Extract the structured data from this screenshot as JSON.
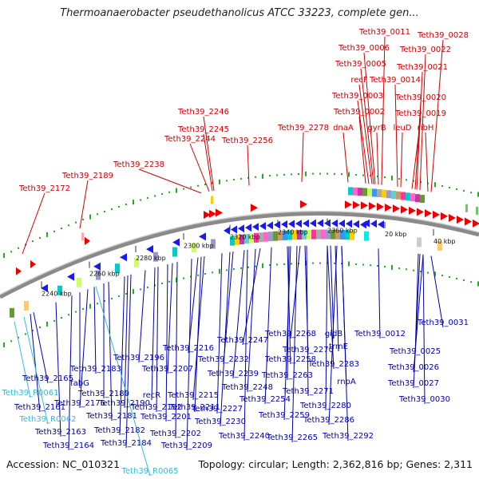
{
  "title": "Thermoanaerobacter pseudethanolicus ATCC 33223, complete gen...",
  "footer": {
    "accession": "Accession: NC_010321",
    "summary": "Topology: circular; Length: 2,362,816 bp; Genes: 2,311"
  },
  "colors": {
    "top_label": "#cc0000",
    "bottom_label": "#0000aa",
    "rna_label": "#33bbdd",
    "forward_gene": "#ee0000",
    "reverse_gene": "#1a1aee",
    "backbone": "#888888",
    "dots": "#22aa22"
  },
  "tick_labels": [
    "2240 kbp",
    "2260 kbp",
    "2280 kbp",
    "2300 kbp",
    "2320 kbp",
    "2340 kbp",
    "2360 kbp",
    "20 kbp",
    "40 kbp"
  ],
  "top_labels": [
    "Teth39_0011",
    "Teth39_0028",
    "Teth39_0006",
    "Teth39_0022",
    "Teth39_0005",
    "Teth39_0021",
    "recF",
    "Teth39_0014",
    "Teth39_0003",
    "Teth39_0020",
    "Teth39_0002",
    "Teth39_0019",
    "dnaA",
    "gyrB",
    "leuD",
    "ribH",
    "Teth39_2246",
    "Teth39_2245",
    "Teth39_2278",
    "Teth39_2244",
    "Teth39_2256",
    "Teth39_2238",
    "Teth39_2189",
    "Teth39_2172"
  ],
  "bottom_labels": [
    "Teth39_0031",
    "Teth39_0012",
    "gidB",
    "Teth39_2268",
    "Teth39_2247",
    "trmE",
    "Teth39_0025",
    "Teth39_2216",
    "Teth39_2270",
    "Teth39_2196",
    "Teth39_2258",
    "Teth39_2232",
    "Teth39_0026",
    "Teth39_2283",
    "Teth39_2183",
    "Teth39_2207",
    "Teth39_2239",
    "Teth39_2263",
    "Teth39_2165",
    "fabG",
    "rnpA",
    "Teth39_0027",
    "Teth39_2248",
    "Teth39_2271",
    "Teth39_2180",
    "recR",
    "Teth39_2215",
    "Teth39_2254",
    "Teth39_2176",
    "Teth39_2190",
    "Teth39_2192",
    "Teth39_2211",
    "Teth39_2280",
    "Teth39_0030",
    "Teth39_2161",
    "Teth39_2227",
    "Teth39_2259",
    "Teth39_2181",
    "Teth39_2201",
    "Teth39_2286",
    "Teth39_2230",
    "Teth39_2163",
    "Teth39_2182",
    "Teth39_2202",
    "Teth39_2240",
    "Teth39_2265",
    "Teth39_2292",
    "Teth39_2164",
    "Teth39_2184",
    "Teth39_2209"
  ],
  "rna_labels": [
    "Teth39_R0061",
    "Teth39_R0062",
    "Teth39_R0065"
  ]
}
